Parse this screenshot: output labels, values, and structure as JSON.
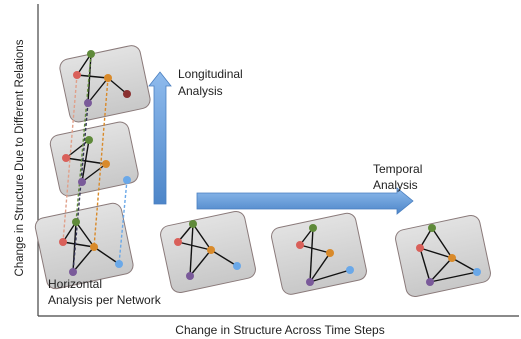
{
  "axes": {
    "x_label": "Change in Structure Across Time Steps",
    "y_label": "Change in Structure Due to Different Relations"
  },
  "annotations": {
    "longitudinal": [
      "Longitudinal",
      "Analysis"
    ],
    "temporal": [
      "Temporal",
      "Analysis"
    ],
    "horizontal": [
      "Horizontal",
      "Analysis per Network"
    ]
  },
  "colors": {
    "card_fill": "#d4d4d4",
    "card_stroke": "#8a7a7a",
    "arrow_fill": "#6fa3df",
    "arrow_stroke": "#4a7fc0",
    "node_green": "#5f8a3a",
    "node_red": "#d9605a",
    "node_orange": "#d98a2a",
    "node_purple": "#7a5a9a",
    "node_darkred": "#8a3030",
    "node_blue": "#6aa8e8"
  }
}
